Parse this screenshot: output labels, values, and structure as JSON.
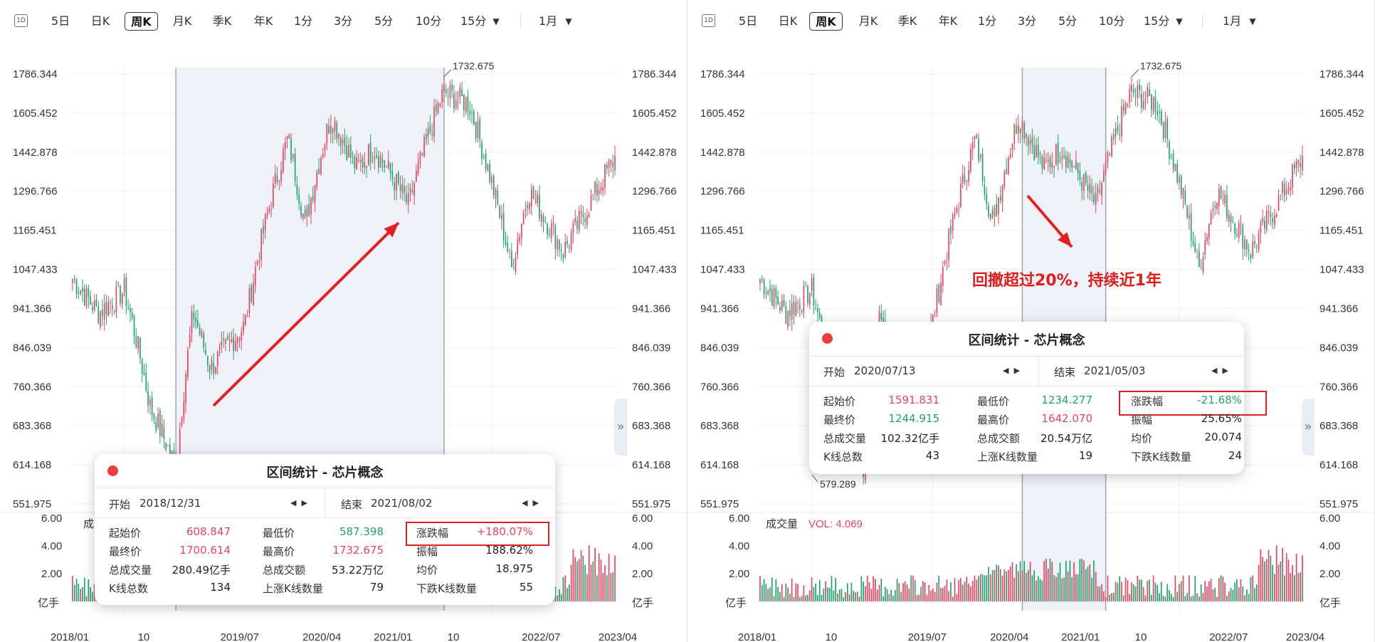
{
  "colors": {
    "up": "#e8445f",
    "down": "#1fa36e",
    "range_fill": "#eef1f8",
    "range_line": "#9ba6bf",
    "arrow": "#e61e1e",
    "vol_label": "#e8445f"
  },
  "toolbar": {
    "d1_icon": "1D",
    "items": [
      "5日",
      "日K",
      "周K",
      "月K",
      "季K",
      "年K",
      "1分",
      "3分",
      "5分",
      "10分"
    ],
    "selected": "周K",
    "dropdown_minutes": "15分",
    "dropdown_period": "1月",
    "caret_icon": "caret-down-icon"
  },
  "left": {
    "price_ticks": [
      "1786.344",
      "1605.452",
      "1442.878",
      "1296.766",
      "1165.451",
      "1047.433",
      "941.366",
      "846.039",
      "760.366",
      "683.368",
      "614.168",
      "551.975"
    ],
    "vol_ticks": [
      "6.00",
      "4.00",
      "2.00",
      "亿手"
    ],
    "x_labels": [
      "2018/01",
      "10",
      "2019/07",
      "2020/04",
      "2021/01",
      "10",
      "2022/07",
      "2023/04"
    ],
    "peak_label": "1732.675",
    "vol_header": "成",
    "modal": {
      "title": "区间统计 - 芯片概念",
      "start_label": "开始",
      "start": "2018/12/31",
      "end_label": "结束",
      "end": "2021/08/02",
      "rows": [
        [
          [
            "起始价",
            "608.847",
            "up"
          ],
          [
            "最低价",
            "587.398",
            "down"
          ],
          [
            "涨跌幅",
            "+180.07%",
            "up"
          ]
        ],
        [
          [
            "最终价",
            "1700.614",
            "up"
          ],
          [
            "最高价",
            "1732.675",
            "up"
          ],
          [
            "振幅",
            "188.62%",
            "plain"
          ]
        ],
        [
          [
            "总成交量",
            "280.49亿手",
            "plain"
          ],
          [
            "总成交额",
            "53.22万亿",
            "plain"
          ],
          [
            "均价",
            "18.975",
            "plain"
          ]
        ],
        [
          [
            "K线总数",
            "134",
            "plain"
          ],
          [
            "上涨K线数量",
            "79",
            "plain"
          ],
          [
            "下跌K线数量",
            "55",
            "plain"
          ]
        ]
      ]
    }
  },
  "right": {
    "price_ticks": [
      "1786.344",
      "1605.452",
      "1442.878",
      "1296.766",
      "1165.451",
      "1047.433",
      "941.366",
      "846.039",
      "760.366",
      "683.368",
      "614.168",
      "551.975"
    ],
    "vol_ticks": [
      "6.00",
      "4.00",
      "2.00",
      "亿手"
    ],
    "x_labels": [
      "2018/01",
      "10",
      "2019/07",
      "2020/04",
      "2021/01",
      "10",
      "2022/07",
      "2023/04"
    ],
    "peak_label": "1732.675",
    "low_label": "579.289",
    "vol_header": "成交量",
    "vol_value": "VOL: 4.069",
    "annotation": "回撤超过20%，持续近1年",
    "modal": {
      "title": "区间统计 - 芯片概念",
      "start_label": "开始",
      "start": "2020/07/13",
      "end_label": "结束",
      "end": "2021/05/03",
      "rows": [
        [
          [
            "起始价",
            "1591.831",
            "up"
          ],
          [
            "最低价",
            "1234.277",
            "down"
          ],
          [
            "涨跌幅",
            "-21.68%",
            "down"
          ]
        ],
        [
          [
            "最终价",
            "1244.915",
            "down"
          ],
          [
            "最高价",
            "1642.070",
            "up"
          ],
          [
            "振幅",
            "25.65%",
            "plain"
          ]
        ],
        [
          [
            "总成交量",
            "102.32亿手",
            "plain"
          ],
          [
            "总成交额",
            "20.54万亿",
            "plain"
          ],
          [
            "均价",
            "20.074",
            "plain"
          ]
        ],
        [
          [
            "K线总数",
            "43",
            "plain"
          ],
          [
            "上涨K线数量",
            "19",
            "plain"
          ],
          [
            "下跌K线数量",
            "24",
            "plain"
          ]
        ]
      ]
    }
  },
  "chart_data": [
    {
      "type": "candlestick",
      "title": "芯片概念 周K",
      "x_range": [
        "2018/01",
        "2023/04"
      ],
      "y_log": true,
      "y_ticks": [
        1786.344,
        1605.452,
        1442.878,
        1296.766,
        1165.451,
        1047.433,
        941.366,
        846.039,
        760.366,
        683.368,
        614.168,
        551.975
      ],
      "closes_key_points": [
        [
          "2018/01",
          1020
        ],
        [
          "2018/04",
          930
        ],
        [
          "2018/07",
          990
        ],
        [
          "2018/10",
          720
        ],
        [
          "2018/12/31",
          608.847
        ],
        [
          "2019/03",
          930
        ],
        [
          "2019/05",
          800
        ],
        [
          "2019/09",
          900
        ],
        [
          "2020/02",
          1500
        ],
        [
          "2020/04",
          1180
        ],
        [
          "2020/07",
          1591
        ],
        [
          "2020/10",
          1380
        ],
        [
          "2020/12",
          1460
        ],
        [
          "2021/04",
          1250
        ],
        [
          "2021/08/02",
          1700.614
        ],
        [
          "2021/11",
          1650
        ],
        [
          "2022/04",
          1050
        ],
        [
          "2022/06",
          1300
        ],
        [
          "2022/10",
          1100
        ],
        [
          "2023/01",
          1250
        ],
        [
          "2023/04",
          1420
        ]
      ],
      "range_selected": [
        "2018/12/31",
        "2021/08/02"
      ],
      "range_high": 1732.675,
      "range_low": 587.398
    },
    {
      "type": "bar",
      "title": "成交量",
      "units": "亿手",
      "y_ticks": [
        6.0,
        4.0,
        2.0
      ],
      "vol_value": 4.069,
      "range_selected": [
        "2020/07/13",
        "2021/05/03"
      ],
      "range_high": 1642.07,
      "range_low": 1234.277
    }
  ]
}
